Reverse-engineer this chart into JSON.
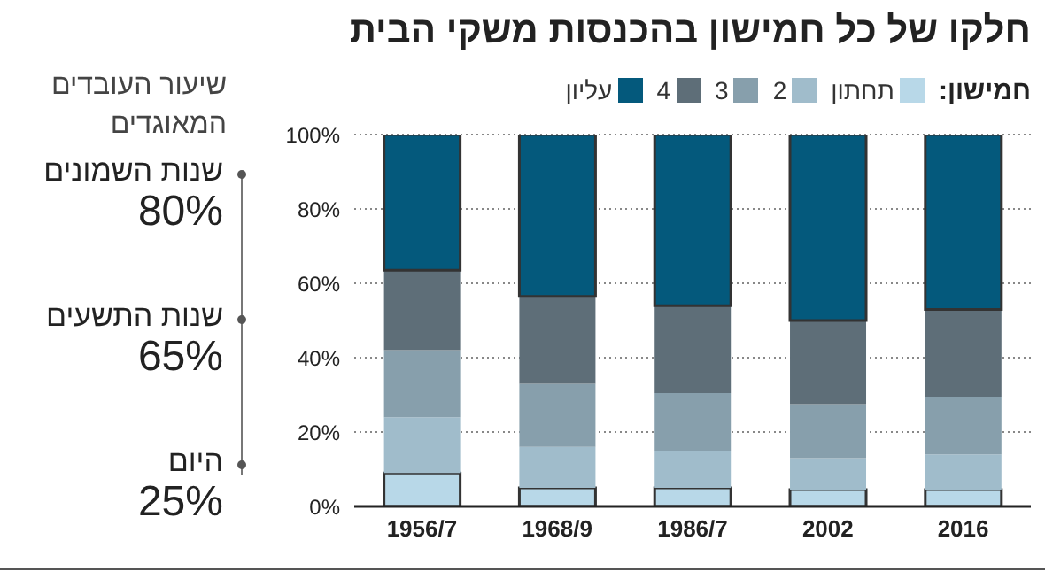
{
  "chart_data": [
    {
      "type": "bar",
      "title": "חלקו של כל חמישון בהכנסות משקי הבית",
      "legend_title": "חמישון:",
      "stacked": true,
      "categories": [
        "1956/7",
        "1968/9",
        "1986/7",
        "2002",
        "2016"
      ],
      "series": [
        {
          "name": "תחתון",
          "color": "#b8d8e8",
          "values": [
            9,
            5,
            5,
            4.5,
            4.5
          ]
        },
        {
          "name": "2",
          "color": "#a0bccb",
          "values": [
            15,
            11,
            10,
            8.5,
            9.5
          ]
        },
        {
          "name": "3",
          "color": "#879fac",
          "values": [
            18,
            17,
            15.5,
            14.5,
            15.5
          ]
        },
        {
          "name": "4",
          "color": "#5e6e78",
          "values": [
            21.5,
            23.5,
            23.5,
            22.5,
            23.5
          ]
        },
        {
          "name": "עליון",
          "color": "#04597c",
          "values": [
            36.5,
            43.5,
            46,
            50,
            47
          ]
        }
      ],
      "ylim": [
        0,
        100
      ],
      "yticks": [
        {
          "value": 0,
          "label": "0%"
        },
        {
          "value": 20,
          "label": "20%"
        },
        {
          "value": 40,
          "label": "40%"
        },
        {
          "value": 60,
          "label": "60%"
        },
        {
          "value": 80,
          "label": "80%"
        },
        {
          "value": 100,
          "label": "100%"
        }
      ],
      "grid": "y",
      "legend": "top right"
    },
    {
      "type": "other",
      "title": "שיעור העובדים המאוגדים",
      "annotations": [
        "שנות השמונים",
        "80%",
        "שנות התשעים",
        "65%",
        "היום",
        "25%"
      ]
    }
  ]
}
